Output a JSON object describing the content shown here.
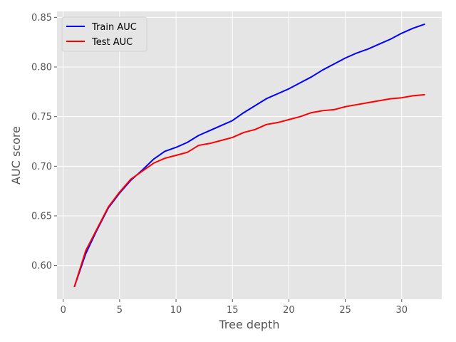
{
  "chart_data": {
    "type": "line",
    "title": "",
    "xlabel": "Tree depth",
    "ylabel": "AUC score",
    "xlim": [
      -0.55,
      33.55
    ],
    "ylim": [
      0.566,
      0.856
    ],
    "xticks": [
      0,
      5,
      10,
      15,
      20,
      25,
      30
    ],
    "yticks": [
      0.6,
      0.65,
      0.7,
      0.75,
      0.8,
      0.85
    ],
    "ytick_labels": [
      "0.60",
      "0.65",
      "0.70",
      "0.75",
      "0.80",
      "0.85"
    ],
    "grid": true,
    "legend_position": "upper-left",
    "style": "ggplot",
    "x": [
      1,
      2,
      3,
      4,
      5,
      6,
      7,
      8,
      9,
      10,
      11,
      12,
      13,
      14,
      15,
      16,
      17,
      18,
      19,
      20,
      21,
      22,
      23,
      24,
      25,
      26,
      27,
      28,
      29,
      30,
      31,
      32
    ],
    "series": [
      {
        "name": "Train AUC",
        "color": "#0000ff",
        "values": [
          0.579,
          0.612,
          0.636,
          0.658,
          0.673,
          0.686,
          0.696,
          0.707,
          0.715,
          0.719,
          0.724,
          0.731,
          0.736,
          0.741,
          0.746,
          0.754,
          0.761,
          0.768,
          0.773,
          0.778,
          0.784,
          0.79,
          0.797,
          0.803,
          0.809,
          0.814,
          0.818,
          0.823,
          0.828,
          0.834,
          0.839,
          0.843
        ]
      },
      {
        "name": "Test AUC",
        "color": "#ff0000",
        "values": [
          0.579,
          0.615,
          0.637,
          0.659,
          0.674,
          0.687,
          0.695,
          0.703,
          0.708,
          0.711,
          0.714,
          0.721,
          0.723,
          0.726,
          0.729,
          0.734,
          0.737,
          0.742,
          0.744,
          0.747,
          0.75,
          0.754,
          0.756,
          0.757,
          0.76,
          0.762,
          0.764,
          0.766,
          0.768,
          0.769,
          0.771,
          0.772
        ]
      }
    ]
  }
}
